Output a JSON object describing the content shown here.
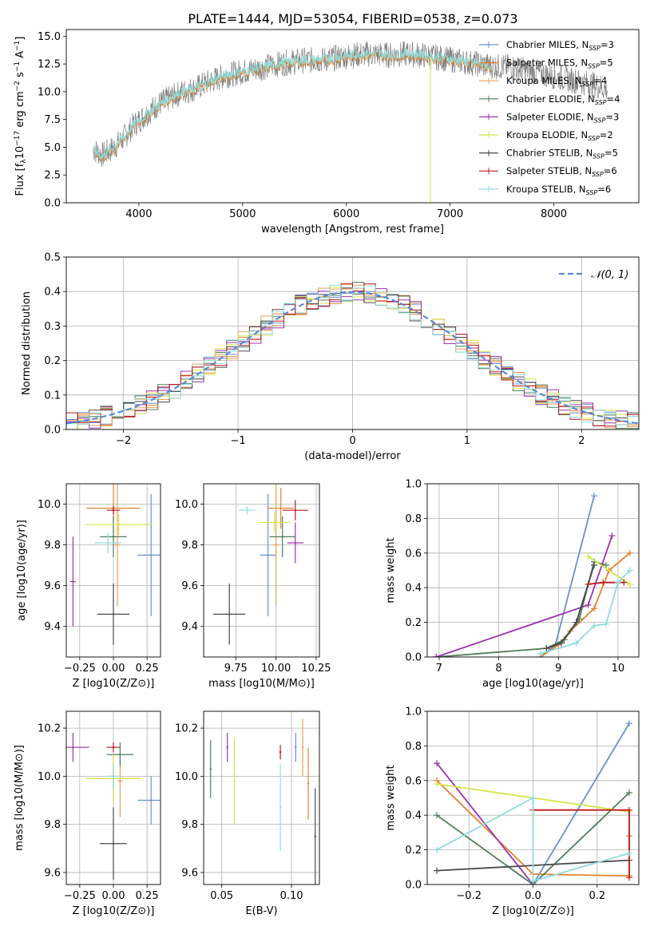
{
  "title": "PLATE=1444, MJD=53054, FIBERID=0538, z=0.073",
  "colors": {
    "Chabrier MILES": "#6a8fd6",
    "Salpeter MILES": "#e3832f",
    "Kroupa MILES": "#e4a35a",
    "Chabrier ELODIE": "#4e7d5a",
    "Salpeter ELODIE": "#9a33b0",
    "Kroupa ELODIE": "#d6e64a",
    "Chabrier STELIB": "#4a4a4a",
    "Salpeter STELIB": "#c0171c",
    "Kroupa STELIB": "#8fdcdc",
    "normal": "#5a8ad6"
  },
  "chart_data": [
    {
      "id": "spectrum",
      "type": "line",
      "title": "PLATE=1444, MJD=53054, FIBERID=0538, z=0.073",
      "xlabel": "wavelength [Angstrom, rest frame]",
      "ylabel": "Flux [f_λ 10^-17 erg cm^-2 s^-1 A^-1]",
      "xlim": [
        3300,
        8820
      ],
      "ylim": [
        0,
        15.6
      ],
      "xticks": [
        4000,
        5000,
        6000,
        7000,
        8000
      ],
      "yticks": [
        0.0,
        2.5,
        5.0,
        7.5,
        10.0,
        12.5,
        15.0
      ],
      "grid": false,
      "legend_position": "right",
      "legend": [
        "Chabrier MILES, N_SSP=3",
        "Salpeter MILES, N_SSP=5",
        "Kroupa MILES, N_SSP=4",
        "Chabrier ELODIE, N_SSP=4",
        "Salpeter ELODIE, N_SSP=3",
        "Kroupa ELODIE, N_SSP=2",
        "Chabrier STELIB, N_SSP=5",
        "Salpeter STELIB, N_SSP=6",
        "Kroupa STELIB, N_SSP=6"
      ],
      "data_series": {
        "name": "data",
        "x": [
          3560,
          3650,
          3750,
          3850,
          3950,
          4050,
          4150,
          4250,
          4400,
          4550,
          4700,
          4850,
          5000,
          5200,
          5400,
          5600,
          5800,
          6000,
          6200,
          6400,
          6600,
          6800,
          7000,
          7200,
          7400,
          7600,
          7800,
          8000,
          8200,
          8400,
          8520
        ],
        "y": [
          4.8,
          4.3,
          4.9,
          5.8,
          7.0,
          7.8,
          8.6,
          9.2,
          9.9,
          10.3,
          11.0,
          11.5,
          11.8,
          12.2,
          12.6,
          12.8,
          12.9,
          13.2,
          13.4,
          13.3,
          13.4,
          13.2,
          12.9,
          12.6,
          12.3,
          12.2,
          11.8,
          11.4,
          11.0,
          10.6,
          10.2
        ]
      },
      "model_series": {
        "name": "model",
        "x": [
          3560,
          3650,
          3750,
          3850,
          3950,
          4050,
          4150,
          4250,
          4400,
          4550,
          4700,
          4850,
          5000,
          5200,
          5400,
          5600,
          5800,
          6000,
          6200,
          6400,
          6600,
          6800,
          7000,
          7200,
          7400
        ],
        "y": [
          4.6,
          4.0,
          4.8,
          5.7,
          6.9,
          7.6,
          8.4,
          9.0,
          9.8,
          10.2,
          10.9,
          11.4,
          11.7,
          12.1,
          12.5,
          12.7,
          12.8,
          13.1,
          13.3,
          13.2,
          13.3,
          13.1,
          12.8,
          12.5,
          12.2
        ]
      }
    },
    {
      "id": "residuals",
      "type": "bar",
      "xlabel": "(data-model)/error",
      "ylabel": "Normed distribution",
      "xlim": [
        -2.5,
        2.5
      ],
      "ylim": [
        0,
        0.5
      ],
      "xticks": [
        -2,
        -1,
        0,
        1,
        2
      ],
      "yticks": [
        0.0,
        0.1,
        0.2,
        0.3,
        0.4,
        0.5
      ],
      "grid": true,
      "legend_position": "upper right",
      "legend": [
        "𝒩(0, 1)"
      ],
      "bin_width": 0.1
    },
    {
      "id": "age_vs_Z",
      "type": "scatter",
      "xlabel": "Z [log10(Z/Z⊙)]",
      "ylabel": "age [log10(age/yr)]",
      "xlim": [
        -0.35,
        0.35
      ],
      "ylim": [
        9.25,
        10.1
      ],
      "xticks": [
        -0.25,
        0.0,
        0.25
      ],
      "xticklabels": [
        "−0.25",
        "0.00",
        "0.25"
      ],
      "yticks": [
        9.4,
        9.6,
        9.8,
        10.0
      ],
      "grid": true,
      "points": [
        {
          "model": "Chabrier MILES",
          "x": 0.28,
          "y": 9.75,
          "xerr": 0.1,
          "yerr": 0.3
        },
        {
          "model": "Salpeter MILES",
          "x": 0.0,
          "y": 9.98,
          "xerr": 0.2,
          "yerr": 0.12
        },
        {
          "model": "Kroupa MILES",
          "x": 0.03,
          "y": 9.8,
          "xerr": 0.02,
          "yerr": 0.3
        },
        {
          "model": "Chabrier ELODIE",
          "x": 0.0,
          "y": 9.84,
          "xerr": 0.1,
          "yerr": 0.1
        },
        {
          "model": "Salpeter ELODIE",
          "x": -0.3,
          "y": 9.62,
          "xerr": 0.02,
          "yerr": 0.22
        },
        {
          "model": "Kroupa ELODIE",
          "x": 0.04,
          "y": 9.9,
          "xerr": 0.25,
          "yerr": 0.05
        },
        {
          "model": "Chabrier STELIB",
          "x": 0.0,
          "y": 9.46,
          "xerr": 0.12,
          "yerr": 0.15
        },
        {
          "model": "Salpeter STELIB",
          "x": 0.0,
          "y": 9.97,
          "xerr": 0.05,
          "yerr": 0.02
        },
        {
          "model": "Kroupa STELIB",
          "x": -0.04,
          "y": 9.81,
          "xerr": 0.1,
          "yerr": 0.05
        }
      ]
    },
    {
      "id": "age_vs_mass",
      "type": "scatter",
      "xlabel": "mass [log10(M/M⊙)]",
      "ylabel": "",
      "xlim": [
        9.55,
        10.27
      ],
      "ylim": [
        9.25,
        10.1
      ],
      "xticks": [
        9.75,
        10.0,
        10.25
      ],
      "xticklabels": [
        "9.75",
        "10.00",
        "10.25"
      ],
      "yticks": [
        9.4,
        9.6,
        9.8,
        10.0
      ],
      "grid": true,
      "points": [
        {
          "model": "Chabrier MILES",
          "x": 9.95,
          "y": 9.75,
          "xerr": 0.05,
          "yerr": 0.3
        },
        {
          "model": "Salpeter MILES",
          "x": 10.03,
          "y": 9.98,
          "xerr": 0.08,
          "yerr": 0.1
        },
        {
          "model": "Kroupa MILES",
          "x": 10.0,
          "y": 9.8,
          "xerr": 0.02,
          "yerr": 0.3
        },
        {
          "model": "Chabrier ELODIE",
          "x": 10.04,
          "y": 9.84,
          "xerr": 0.08,
          "yerr": 0.1
        },
        {
          "model": "Salpeter ELODIE",
          "x": 10.12,
          "y": 9.81,
          "xerr": 0.05,
          "yerr": 0.1
        },
        {
          "model": "Kroupa ELODIE",
          "x": 9.99,
          "y": 9.91,
          "xerr": 0.1,
          "yerr": 0.05
        },
        {
          "model": "Chabrier STELIB",
          "x": 9.71,
          "y": 9.46,
          "xerr": 0.1,
          "yerr": 0.15
        },
        {
          "model": "Salpeter STELIB",
          "x": 10.12,
          "y": 9.97,
          "xerr": 0.08,
          "yerr": 0.05
        },
        {
          "model": "Kroupa STELIB",
          "x": 9.82,
          "y": 9.97,
          "xerr": 0.05,
          "yerr": 0.02
        }
      ]
    },
    {
      "id": "weight_vs_age",
      "type": "line",
      "xlabel": "age [log10(age/yr)]",
      "ylabel": "mass weight",
      "xlim": [
        6.8,
        10.35
      ],
      "ylim": [
        0,
        1.0
      ],
      "xticks": [
        7,
        8,
        9,
        10
      ],
      "yticks": [
        0.0,
        0.2,
        0.4,
        0.6,
        0.8,
        1.0
      ],
      "grid": true,
      "series": [
        {
          "name": "Chabrier MILES",
          "x": [
            8.7,
            8.95,
            9.6
          ],
          "y": [
            0.0,
            0.07,
            0.93
          ]
        },
        {
          "name": "Salpeter MILES",
          "x": [
            8.7,
            9.0,
            9.2,
            9.6,
            9.85,
            10.2
          ],
          "y": [
            0.0,
            0.07,
            0.15,
            0.28,
            0.5,
            0.6
          ]
        },
        {
          "name": "Chabrier ELODIE",
          "x": [
            6.95,
            8.8,
            9.1,
            9.35,
            9.6,
            9.8
          ],
          "y": [
            0.0,
            0.05,
            0.1,
            0.22,
            0.55,
            0.53
          ]
        },
        {
          "name": "Salpeter ELODIE",
          "x": [
            6.95,
            9.5,
            9.9
          ],
          "y": [
            0.0,
            0.3,
            0.7
          ]
        },
        {
          "name": "Kroupa ELODIE",
          "x": [
            9.5,
            10.2
          ],
          "y": [
            0.58,
            0.42
          ]
        },
        {
          "name": "Chabrier STELIB",
          "x": [
            8.8,
            9.05,
            9.3,
            9.6
          ],
          "y": [
            0.05,
            0.08,
            0.2,
            0.53
          ]
        },
        {
          "name": "Salpeter STELIB",
          "x": [
            9.5,
            9.75,
            10.1
          ],
          "y": [
            0.42,
            0.43,
            0.43
          ]
        },
        {
          "name": "Kroupa STELIB",
          "x": [
            8.7,
            9.3,
            9.6,
            9.8,
            10.0,
            10.2
          ],
          "y": [
            0.02,
            0.08,
            0.18,
            0.19,
            0.43,
            0.5
          ]
        }
      ]
    },
    {
      "id": "mass_vs_Z",
      "type": "scatter",
      "xlabel": "Z [log10(Z/Z⊙)]",
      "ylabel": "mass [log10(M/M⊙)]",
      "xlim": [
        -0.35,
        0.35
      ],
      "ylim": [
        9.55,
        10.27
      ],
      "xticks": [
        -0.25,
        0.0,
        0.25
      ],
      "xticklabels": [
        "−0.25",
        "0.00",
        "0.25"
      ],
      "yticks": [
        9.6,
        9.8,
        10.0,
        10.2
      ],
      "grid": true,
      "points": [
        {
          "model": "Chabrier MILES",
          "x": 0.28,
          "y": 9.9,
          "xerr": 0.1,
          "yerr": 0.1
        },
        {
          "model": "Salpeter MILES",
          "x": 0.0,
          "y": 9.99,
          "xerr": 0.2,
          "yerr": 0.1
        },
        {
          "model": "Kroupa MILES",
          "x": 0.05,
          "y": 9.98,
          "xerr": 0.02,
          "yerr": 0.15
        },
        {
          "model": "Chabrier ELODIE",
          "x": 0.05,
          "y": 10.09,
          "xerr": 0.1,
          "yerr": 0.05
        },
        {
          "model": "Salpeter ELODIE",
          "x": -0.3,
          "y": 10.12,
          "xerr": 0.12,
          "yerr": 0.06
        },
        {
          "model": "Kroupa ELODIE",
          "x": 0.0,
          "y": 9.99,
          "xerr": 0.2,
          "yerr": 0.1
        },
        {
          "model": "Chabrier STELIB",
          "x": 0.0,
          "y": 9.72,
          "xerr": 0.1,
          "yerr": 0.15
        },
        {
          "model": "Salpeter STELIB",
          "x": 0.0,
          "y": 10.12,
          "xerr": 0.05,
          "yerr": 0.02
        },
        {
          "model": "Kroupa STELIB",
          "x": 0.0,
          "y": 10.0,
          "xerr": 0.05,
          "yerr": 0.05
        }
      ]
    },
    {
      "id": "mass_vs_ebv",
      "type": "scatter",
      "xlabel": "E(B-V)",
      "ylabel": "",
      "xlim": [
        0.037,
        0.12
      ],
      "ylim": [
        9.55,
        10.27
      ],
      "xticks": [
        0.05,
        0.1
      ],
      "xticklabels": [
        "0.05",
        "0.10"
      ],
      "yticks": [
        9.6,
        9.8,
        10.0,
        10.2
      ],
      "grid": true,
      "points": [
        {
          "model": "Chabrier ELODIE",
          "x": 0.042,
          "y": 10.03,
          "yerr": 0.12
        },
        {
          "model": "Salpeter ELODIE",
          "x": 0.054,
          "y": 10.12,
          "yerr": 0.06
        },
        {
          "model": "Kroupa ELODIE",
          "x": 0.059,
          "y": 9.98,
          "yerr": 0.18
        },
        {
          "model": "Salpeter STELIB",
          "x": 0.092,
          "y": 10.1,
          "yerr": 0.03
        },
        {
          "model": "Kroupa STELIB",
          "x": 0.092,
          "y": 9.87,
          "yerr": 0.18
        },
        {
          "model": "Chabrier MILES",
          "x": 0.103,
          "y": 10.12,
          "yerr": 0.06
        },
        {
          "model": "Salpeter MILES",
          "x": 0.112,
          "y": 9.97,
          "yerr": 0.15
        },
        {
          "model": "Chabrier STELIB",
          "x": 0.117,
          "y": 9.75,
          "yerr": 0.2
        },
        {
          "model": "Kroupa MILES",
          "x": 0.108,
          "y": 10.12,
          "yerr": 0.12
        }
      ]
    },
    {
      "id": "weight_vs_Z",
      "type": "line",
      "xlabel": "Z [log10(Z/Z⊙)]",
      "ylabel": "mass weight",
      "xlim": [
        -0.33,
        0.33
      ],
      "ylim": [
        0,
        1.0
      ],
      "xticks": [
        -0.2,
        0.0,
        0.2
      ],
      "xticklabels": [
        "−0.2",
        "0.0",
        "0.2"
      ],
      "yticks": [
        0.0,
        0.2,
        0.4,
        0.6,
        0.8,
        1.0
      ],
      "grid": true,
      "series": [
        {
          "name": "Chabrier MILES",
          "x": [
            0.0,
            0.3
          ],
          "y": [
            0.0,
            0.93
          ]
        },
        {
          "name": "Salpeter MILES",
          "x": [
            -0.3,
            0.0,
            0.3,
            0.3
          ],
          "y": [
            0.6,
            0.06,
            0.05,
            0.28
          ]
        },
        {
          "name": "Chabrier ELODIE",
          "x": [
            -0.3,
            0.0,
            0.3
          ],
          "y": [
            0.4,
            0.0,
            0.53
          ]
        },
        {
          "name": "Salpeter ELODIE",
          "x": [
            -0.3,
            0.0
          ],
          "y": [
            0.7,
            0.0
          ]
        },
        {
          "name": "Kroupa ELODIE",
          "x": [
            -0.3,
            0.3
          ],
          "y": [
            0.58,
            0.42
          ]
        },
        {
          "name": "Chabrier STELIB",
          "x": [
            -0.3,
            0.3
          ],
          "y": [
            0.08,
            0.14
          ]
        },
        {
          "name": "Salpeter STELIB",
          "x": [
            0.0,
            0.3,
            0.3
          ],
          "y": [
            0.43,
            0.43,
            0.04
          ]
        },
        {
          "name": "Kroupa STELIB",
          "x": [
            -0.3,
            0.0,
            0.0,
            0.3
          ],
          "y": [
            0.2,
            0.5,
            0.02,
            0.18
          ]
        }
      ]
    }
  ]
}
